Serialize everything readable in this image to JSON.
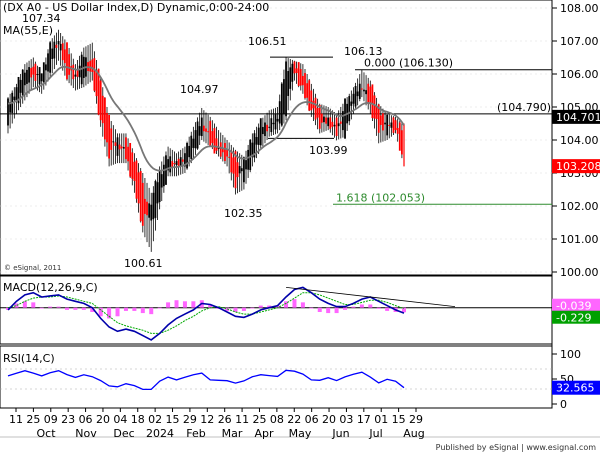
{
  "chart_data": [
    {
      "type": "candlestick",
      "title": "(DX A0 - US Dollar Index,D) Dynamic,0:00-24:00",
      "ma_label": "MA(55,E)",
      "copyright": "© eSignal, 2011",
      "y_axis": {
        "labels": [
          "108.00",
          "107.00",
          "106.00",
          "105.00",
          "104.00",
          "103.00",
          "102.00",
          "101.00",
          "100.00"
        ],
        "ylim": [
          99.8,
          108.2
        ]
      },
      "x_axis": {
        "day_labels": [
          "11",
          "25",
          "09",
          "23",
          "06",
          "20",
          "04",
          "18",
          "02",
          "15",
          "29",
          "12",
          "26",
          "11",
          "25",
          "08",
          "22",
          "06",
          "20",
          "03",
          "17",
          "01",
          "15",
          "29"
        ],
        "month_labels": [
          "Oct",
          "Nov",
          "Dec",
          "2024",
          "Feb",
          "Mar",
          "Apr",
          "May",
          "Jun",
          "Jul",
          "Aug"
        ]
      },
      "price_annotations": [
        {
          "label": "107.34",
          "value": 107.34
        },
        {
          "label": "106.51",
          "value": 106.51
        },
        {
          "label": "106.13",
          "value": 106.13
        },
        {
          "label": "104.97",
          "value": 104.97
        },
        {
          "label": "103.99",
          "value": 103.99
        },
        {
          "label": "102.35",
          "value": 102.35
        },
        {
          "label": "100.61",
          "value": 100.61
        }
      ],
      "fib_lines": [
        {
          "label": "0.000 (106.130)",
          "value": 106.13,
          "color": "#000000"
        },
        {
          "label": "1.618 (102.053)",
          "value": 102.053,
          "color": "#2e8b2e"
        }
      ],
      "horizontal_line": {
        "label": "(104.790)",
        "value": 104.79
      },
      "price_badges": [
        {
          "label": "104.701",
          "value": 104.701,
          "bg": "#000000"
        },
        {
          "label": "103.208",
          "value": 103.208,
          "bg": "#ff0000"
        }
      ],
      "ohlc_series_key": [
        [
          104.6,
          105.3,
          104.2,
          105.1
        ],
        [
          105.2,
          105.7,
          104.8,
          105.6
        ],
        [
          105.5,
          106.3,
          105.2,
          106.2
        ],
        [
          106.3,
          106.5,
          105.6,
          105.9
        ],
        [
          105.7,
          106.0,
          105.4,
          106.1
        ],
        [
          106.2,
          107.0,
          105.9,
          106.8
        ],
        [
          106.9,
          107.34,
          106.4,
          107.0
        ],
        [
          106.8,
          106.95,
          105.8,
          106.0
        ],
        [
          106.0,
          106.3,
          105.5,
          105.9
        ],
        [
          105.8,
          106.8,
          105.6,
          106.6
        ],
        [
          106.6,
          106.95,
          105.8,
          105.9
        ],
        [
          105.8,
          105.9,
          104.4,
          104.6
        ],
        [
          104.6,
          104.7,
          103.2,
          103.6
        ],
        [
          103.6,
          104.2,
          103.3,
          104.0
        ],
        [
          104.0,
          104.2,
          103.3,
          103.5
        ],
        [
          103.5,
          103.6,
          102.4,
          102.6
        ],
        [
          102.7,
          103.0,
          101.2,
          101.4
        ],
        [
          101.4,
          102.4,
          100.61,
          102.2
        ],
        [
          102.2,
          103.2,
          101.9,
          103.0
        ],
        [
          103.0,
          103.8,
          102.9,
          103.5
        ],
        [
          103.4,
          103.6,
          102.9,
          103.2
        ],
        [
          103.2,
          103.8,
          103.0,
          103.6
        ],
        [
          103.6,
          104.4,
          103.4,
          104.2
        ],
        [
          104.2,
          104.97,
          104.0,
          104.6
        ],
        [
          104.5,
          104.7,
          103.8,
          103.9
        ],
        [
          103.9,
          104.3,
          103.5,
          103.6
        ],
        [
          103.7,
          104.0,
          103.2,
          103.5
        ],
        [
          103.5,
          103.7,
          102.35,
          102.7
        ],
        [
          102.8,
          103.5,
          102.5,
          103.4
        ],
        [
          103.4,
          104.2,
          103.2,
          104.0
        ],
        [
          104.0,
          104.6,
          103.7,
          104.5
        ],
        [
          104.4,
          104.9,
          104.1,
          104.4
        ],
        [
          104.4,
          105.0,
          104.2,
          104.8
        ],
        [
          104.8,
          106.51,
          104.6,
          106.3
        ],
        [
          106.3,
          106.4,
          105.8,
          106.1
        ],
        [
          106.1,
          106.3,
          105.4,
          105.5
        ],
        [
          105.5,
          105.7,
          104.7,
          104.9
        ],
        [
          104.9,
          105.1,
          104.2,
          104.5
        ],
        [
          104.5,
          105.0,
          104.3,
          104.6
        ],
        [
          104.6,
          104.8,
          103.99,
          104.2
        ],
        [
          104.2,
          105.2,
          104.1,
          105.1
        ],
        [
          105.1,
          105.6,
          104.8,
          105.4
        ],
        [
          105.4,
          106.13,
          105.3,
          105.7
        ],
        [
          105.7,
          105.8,
          104.8,
          105.0
        ],
        [
          105.0,
          105.1,
          103.9,
          104.3
        ],
        [
          104.3,
          104.8,
          104.0,
          104.6
        ],
        [
          104.6,
          104.7,
          104.2,
          104.3
        ],
        [
          104.3,
          104.5,
          103.2,
          103.21
        ]
      ]
    },
    {
      "type": "line",
      "title": "MACD(12,26,9,C)",
      "y_axis": {
        "labels": []
      },
      "value_badges": [
        {
          "label": "-0.039",
          "bg": "#ff66ff"
        },
        {
          "label": "-0.229",
          "bg": "#00a000"
        }
      ],
      "series": [
        {
          "name": "",
          "color": "#0000aa",
          "values": [
            -0.1,
            0.3,
            0.6,
            0.7,
            0.5,
            0.55,
            0.6,
            0.4,
            0.3,
            0.2,
            0.0,
            -0.5,
            -0.9,
            -1.1,
            -1.0,
            -1.1,
            -1.3,
            -1.5,
            -1.2,
            -0.8,
            -0.5,
            -0.3,
            -0.1,
            0.2,
            0.15,
            0.0,
            -0.2,
            -0.4,
            -0.45,
            -0.3,
            -0.1,
            0.0,
            0.1,
            0.5,
            0.85,
            0.95,
            0.7,
            0.4,
            0.2,
            0.05,
            0.05,
            0.2,
            0.4,
            0.5,
            0.3,
            0.1,
            -0.1,
            -0.25
          ]
        },
        {
          "name": "",
          "color": "#00aa00",
          "values": [
            0.0,
            0.1,
            0.3,
            0.45,
            0.5,
            0.5,
            0.55,
            0.5,
            0.4,
            0.3,
            0.2,
            -0.1,
            -0.4,
            -0.7,
            -0.85,
            -0.95,
            -1.05,
            -1.2,
            -1.2,
            -1.05,
            -0.85,
            -0.6,
            -0.4,
            -0.15,
            0.0,
            0.05,
            -0.05,
            -0.2,
            -0.3,
            -0.3,
            -0.2,
            -0.1,
            0.0,
            0.2,
            0.45,
            0.7,
            0.7,
            0.6,
            0.45,
            0.3,
            0.15,
            0.15,
            0.25,
            0.35,
            0.35,
            0.25,
            0.1,
            -0.04
          ]
        }
      ]
    },
    {
      "type": "line",
      "title": "RSI(14,C)",
      "y_axis": {
        "labels": [
          "100",
          "50",
          "0"
        ]
      },
      "value_badge": {
        "label": "32.565",
        "bg": "#0000ff"
      },
      "series": [
        {
          "name": "",
          "color": "#0000ff",
          "values": [
            58,
            62,
            66,
            60,
            58,
            63,
            66,
            57,
            55,
            59,
            54,
            45,
            38,
            35,
            40,
            35,
            31,
            30,
            45,
            52,
            50,
            54,
            58,
            60,
            50,
            48,
            46,
            40,
            48,
            55,
            58,
            55,
            57,
            68,
            65,
            58,
            50,
            48,
            52,
            45,
            56,
            60,
            63,
            52,
            44,
            50,
            45,
            32.565
          ]
        }
      ]
    }
  ],
  "footer": {
    "text": "Published by eSignal | www.esignal.com"
  }
}
